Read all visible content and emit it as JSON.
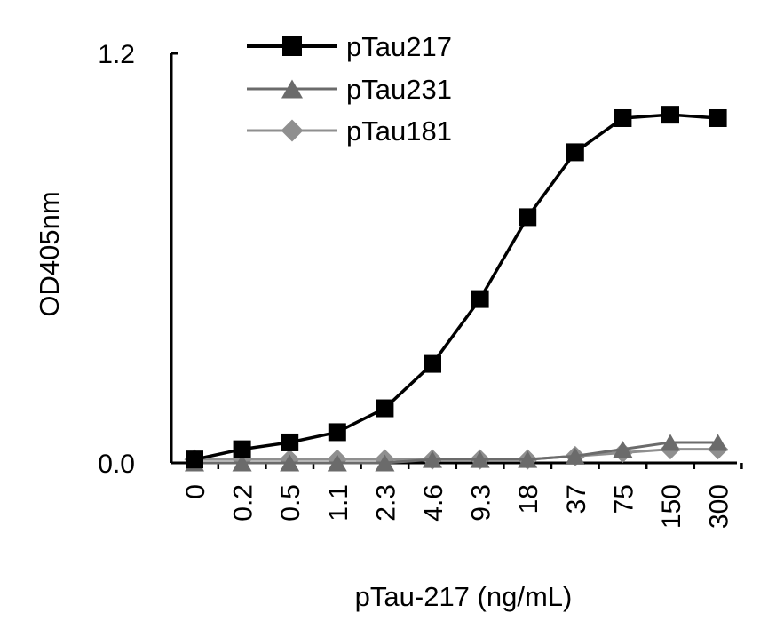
{
  "chart_data": {
    "type": "line",
    "title": "",
    "xlabel": "pTau-217 (ng/mL)",
    "ylabel": "OD405nm",
    "categories": [
      "0",
      "0.2",
      "0.5",
      "1.1",
      "2.3",
      "4.6",
      "9.3",
      "18",
      "37",
      "75",
      "150",
      "300"
    ],
    "ylim": [
      0,
      1.2
    ],
    "yticks": [
      "0.0",
      "1.2"
    ],
    "grid": false,
    "legend_position": "top",
    "series": [
      {
        "name": "pTau217",
        "marker": "square",
        "color": "#000000",
        "values": [
          0.01,
          0.04,
          0.06,
          0.09,
          0.16,
          0.29,
          0.48,
          0.72,
          0.91,
          1.01,
          1.02,
          1.01
        ]
      },
      {
        "name": "pTau231",
        "marker": "triangle",
        "color": "#6b6b6b",
        "values": [
          0.0,
          0.0,
          0.0,
          0.0,
          0.0,
          0.01,
          0.01,
          0.01,
          0.02,
          0.04,
          0.06,
          0.06
        ]
      },
      {
        "name": "pTau181",
        "marker": "diamond",
        "color": "#8f8f8f",
        "values": [
          0.01,
          0.01,
          0.01,
          0.01,
          0.01,
          0.01,
          0.01,
          0.01,
          0.02,
          0.03,
          0.04,
          0.04
        ]
      }
    ]
  }
}
